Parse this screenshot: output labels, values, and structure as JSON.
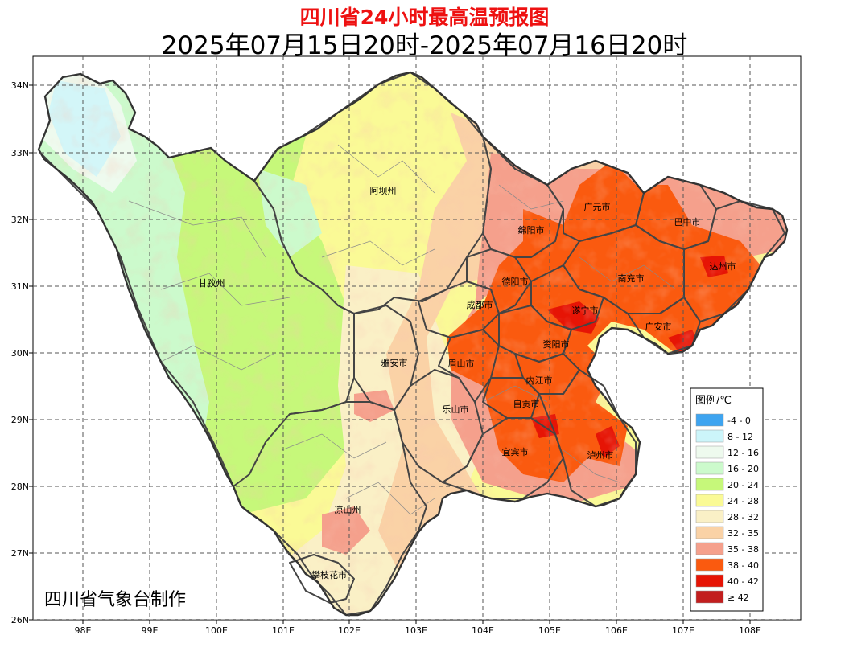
{
  "title": "四川省24小时最高温预报图",
  "subtitle": "2025年07月15日20时-2025年07月16日20时",
  "credit": "四川省气象台制作",
  "lon_labels": [
    "98E",
    "99E",
    "100E",
    "101E",
    "102E",
    "103E",
    "104E",
    "105E",
    "106E",
    "107E",
    "108E"
  ],
  "lat_labels": [
    "34N",
    "33N",
    "32N",
    "31N",
    "30N",
    "29N",
    "28N",
    "27N",
    "26N"
  ],
  "regions": [
    {
      "name": "阿坝州"
    },
    {
      "name": "甘孜州"
    },
    {
      "name": "广元市"
    },
    {
      "name": "巴中市"
    },
    {
      "name": "绵阳市"
    },
    {
      "name": "达州市"
    },
    {
      "name": "德阳市"
    },
    {
      "name": "南充市"
    },
    {
      "name": "成都市"
    },
    {
      "name": "遂宁市"
    },
    {
      "name": "广安市"
    },
    {
      "name": "资阳市"
    },
    {
      "name": "雅安市"
    },
    {
      "name": "眉山市"
    },
    {
      "name": "内江市"
    },
    {
      "name": "自贡市"
    },
    {
      "name": "乐山市"
    },
    {
      "name": "宜宾市"
    },
    {
      "name": "泸州市"
    },
    {
      "name": "凉山州"
    },
    {
      "name": "攀枝花市"
    }
  ],
  "legend": {
    "title": "图例/℃",
    "items": [
      {
        "label": "-4 - 0",
        "color": "#3ea4f0"
      },
      {
        "label": "8 - 12",
        "color": "#ccf5fa"
      },
      {
        "label": "12 - 16",
        "color": "#eefaee"
      },
      {
        "label": "16 - 20",
        "color": "#ccfacc"
      },
      {
        "label": "20 - 24",
        "color": "#c6f87a"
      },
      {
        "label": "24 - 28",
        "color": "#fafa96"
      },
      {
        "label": "28 - 32",
        "color": "#faf0c6"
      },
      {
        "label": "32 - 35",
        "color": "#fad2a6"
      },
      {
        "label": "35 - 38",
        "color": "#f5a08c"
      },
      {
        "label": "38 - 40",
        "color": "#fa5a0f"
      },
      {
        "label": "40 - 42",
        "color": "#e61405"
      },
      {
        "label": "≥ 42",
        "color": "#c21e1e"
      }
    ]
  }
}
